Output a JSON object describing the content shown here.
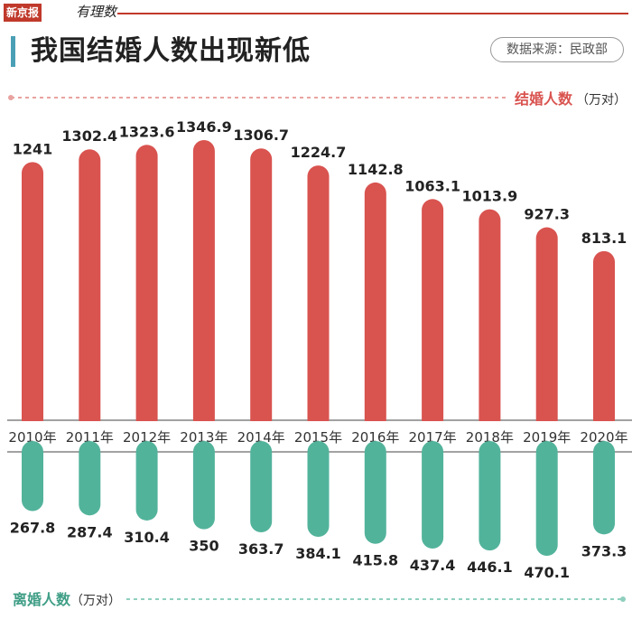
{
  "header": {
    "logo_text": "新京报",
    "logo_script": "有理数",
    "title": "我国结婚人数出现新低",
    "source": "数据来源：民政部"
  },
  "chart_data": {
    "type": "bar",
    "title": "我国结婚人数出现新低",
    "categories": [
      "2010年",
      "2011年",
      "2012年",
      "2013年",
      "2014年",
      "2015年",
      "2016年",
      "2017年",
      "2018年",
      "2019年",
      "2020年"
    ],
    "series": [
      {
        "name": "结婚人数",
        "unit": "（万对）",
        "color": "#d9534f",
        "direction": "up",
        "values": [
          1241,
          1302.4,
          1323.6,
          1346.9,
          1306.7,
          1224.7,
          1142.8,
          1063.1,
          1013.9,
          927.3,
          813.1
        ],
        "labels": [
          "1241",
          "1302.4",
          "1323.6",
          "1346.9",
          "1306.7",
          "1224.7",
          "1142.8",
          "1063.1",
          "1013.9",
          "927.3",
          "813.1"
        ]
      },
      {
        "name": "离婚人数",
        "unit": "（万对）",
        "color": "#52b39b",
        "direction": "down",
        "values": [
          267.8,
          287.4,
          310.4,
          350,
          363.7,
          384.1,
          415.8,
          437.4,
          446.1,
          470.1,
          373.3
        ],
        "labels": [
          "267.8",
          "287.4",
          "310.4",
          "350",
          "363.7",
          "384.1",
          "415.8",
          "437.4",
          "446.1",
          "470.1",
          "373.3"
        ]
      }
    ],
    "xlabel": "",
    "ylabel": ""
  },
  "colors": {
    "brand_red": "#c0392b",
    "accent_blue": "#4a9fb5",
    "marriage": "#d9534f",
    "divorce": "#52b39b"
  }
}
